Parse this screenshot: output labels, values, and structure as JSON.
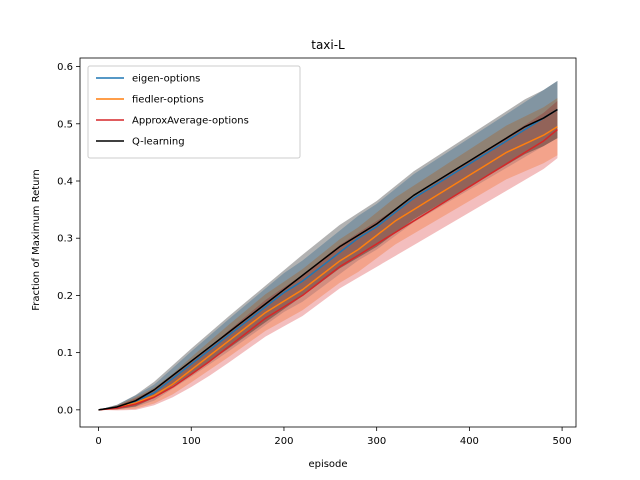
{
  "chart_data": {
    "type": "line",
    "title": "taxi-L",
    "xlabel": "episode",
    "ylabel": "Fraction of Maximum Return",
    "xlim": [
      -20,
      515
    ],
    "ylim": [
      -0.03,
      0.615
    ],
    "xticks": [
      0,
      100,
      200,
      300,
      400,
      500
    ],
    "yticks": [
      0.0,
      0.1,
      0.2,
      0.3,
      0.4,
      0.5,
      0.6
    ],
    "xtick_labels": [
      "0",
      "100",
      "200",
      "300",
      "400",
      "500"
    ],
    "ytick_labels": [
      "0.0",
      "0.1",
      "0.2",
      "0.3",
      "0.4",
      "0.5",
      "0.6"
    ],
    "grid": false,
    "legend_position": "upper-left",
    "x": [
      0,
      20,
      40,
      60,
      80,
      100,
      120,
      140,
      160,
      180,
      200,
      220,
      240,
      260,
      280,
      300,
      320,
      340,
      360,
      380,
      400,
      420,
      440,
      460,
      480,
      495
    ],
    "series": [
      {
        "name": "eigen-options",
        "color": "#1f77b4",
        "band_opacity": 0.3,
        "values": [
          0.0,
          0.005,
          0.015,
          0.03,
          0.055,
          0.08,
          0.105,
          0.13,
          0.155,
          0.18,
          0.205,
          0.225,
          0.25,
          0.275,
          0.3,
          0.32,
          0.345,
          0.37,
          0.39,
          0.41,
          0.43,
          0.45,
          0.47,
          0.49,
          0.51,
          0.525
        ],
        "band": [
          0.0,
          0.004,
          0.01,
          0.014,
          0.018,
          0.022,
          0.025,
          0.028,
          0.03,
          0.032,
          0.034,
          0.036,
          0.037,
          0.038,
          0.039,
          0.04,
          0.041,
          0.042,
          0.043,
          0.044,
          0.045,
          0.046,
          0.047,
          0.048,
          0.049,
          0.05
        ]
      },
      {
        "name": "fiedler-options",
        "color": "#ff7f0e",
        "band_opacity": 0.3,
        "values": [
          0.0,
          0.004,
          0.012,
          0.025,
          0.045,
          0.07,
          0.095,
          0.12,
          0.145,
          0.17,
          0.19,
          0.21,
          0.235,
          0.26,
          0.28,
          0.305,
          0.33,
          0.35,
          0.37,
          0.39,
          0.41,
          0.43,
          0.45,
          0.465,
          0.48,
          0.495
        ],
        "band": [
          0.0,
          0.004,
          0.01,
          0.014,
          0.018,
          0.022,
          0.025,
          0.028,
          0.03,
          0.032,
          0.034,
          0.036,
          0.037,
          0.038,
          0.039,
          0.04,
          0.041,
          0.042,
          0.043,
          0.044,
          0.045,
          0.046,
          0.047,
          0.048,
          0.049,
          0.05
        ]
      },
      {
        "name": "ApproxAverage-options",
        "color": "#d62728",
        "band_opacity": 0.3,
        "values": [
          0.0,
          0.003,
          0.01,
          0.022,
          0.04,
          0.062,
          0.085,
          0.11,
          0.135,
          0.16,
          0.18,
          0.2,
          0.225,
          0.25,
          0.27,
          0.29,
          0.31,
          0.33,
          0.35,
          0.37,
          0.39,
          0.41,
          0.43,
          0.45,
          0.47,
          0.49
        ],
        "band": [
          0.0,
          0.004,
          0.01,
          0.014,
          0.018,
          0.022,
          0.025,
          0.028,
          0.03,
          0.032,
          0.034,
          0.036,
          0.037,
          0.038,
          0.039,
          0.04,
          0.041,
          0.042,
          0.043,
          0.044,
          0.045,
          0.046,
          0.047,
          0.048,
          0.049,
          0.05
        ]
      },
      {
        "name": "Q-learning",
        "color": "#000000",
        "band_opacity": 0.3,
        "values": [
          0.0,
          0.005,
          0.016,
          0.035,
          0.06,
          0.085,
          0.11,
          0.135,
          0.16,
          0.185,
          0.21,
          0.235,
          0.26,
          0.285,
          0.305,
          0.325,
          0.35,
          0.375,
          0.395,
          0.415,
          0.435,
          0.455,
          0.475,
          0.495,
          0.51,
          0.525
        ],
        "band": [
          0.0,
          0.004,
          0.01,
          0.014,
          0.018,
          0.022,
          0.025,
          0.028,
          0.03,
          0.032,
          0.034,
          0.036,
          0.037,
          0.038,
          0.039,
          0.04,
          0.041,
          0.042,
          0.043,
          0.044,
          0.045,
          0.046,
          0.047,
          0.048,
          0.049,
          0.05
        ]
      }
    ]
  }
}
